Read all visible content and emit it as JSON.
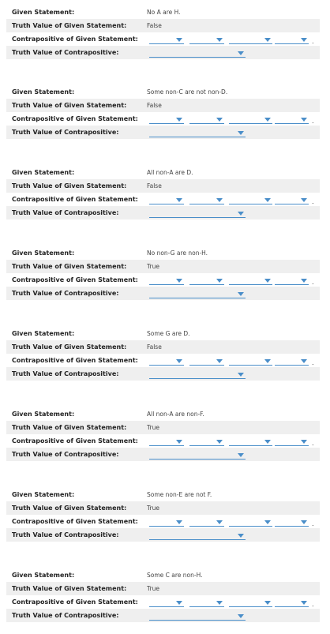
{
  "labels": {
    "given": "Given Statement:",
    "truth_given": "Truth Value of Given Statement:",
    "contrapositive": "Contrapositive of Given Statement:",
    "truth_contra": "Truth Value of Contrapositive:",
    "period": "."
  },
  "problems": [
    {
      "statement": "No A are H.",
      "truth": "False"
    },
    {
      "statement": "Some non-C are not non-D.",
      "truth": "False"
    },
    {
      "statement": "All non-A are D.",
      "truth": "False"
    },
    {
      "statement": "No non-G are non-H.",
      "truth": "True"
    },
    {
      "statement": "Some G are D.",
      "truth": "False"
    },
    {
      "statement": "All non-A are non-F.",
      "truth": "True"
    },
    {
      "statement": "Some non-E are not F.",
      "truth": "True"
    },
    {
      "statement": "Some C are non-H.",
      "truth": "True"
    }
  ],
  "colors": {
    "accent": "#4a8ec9",
    "shade": "#efefef"
  }
}
